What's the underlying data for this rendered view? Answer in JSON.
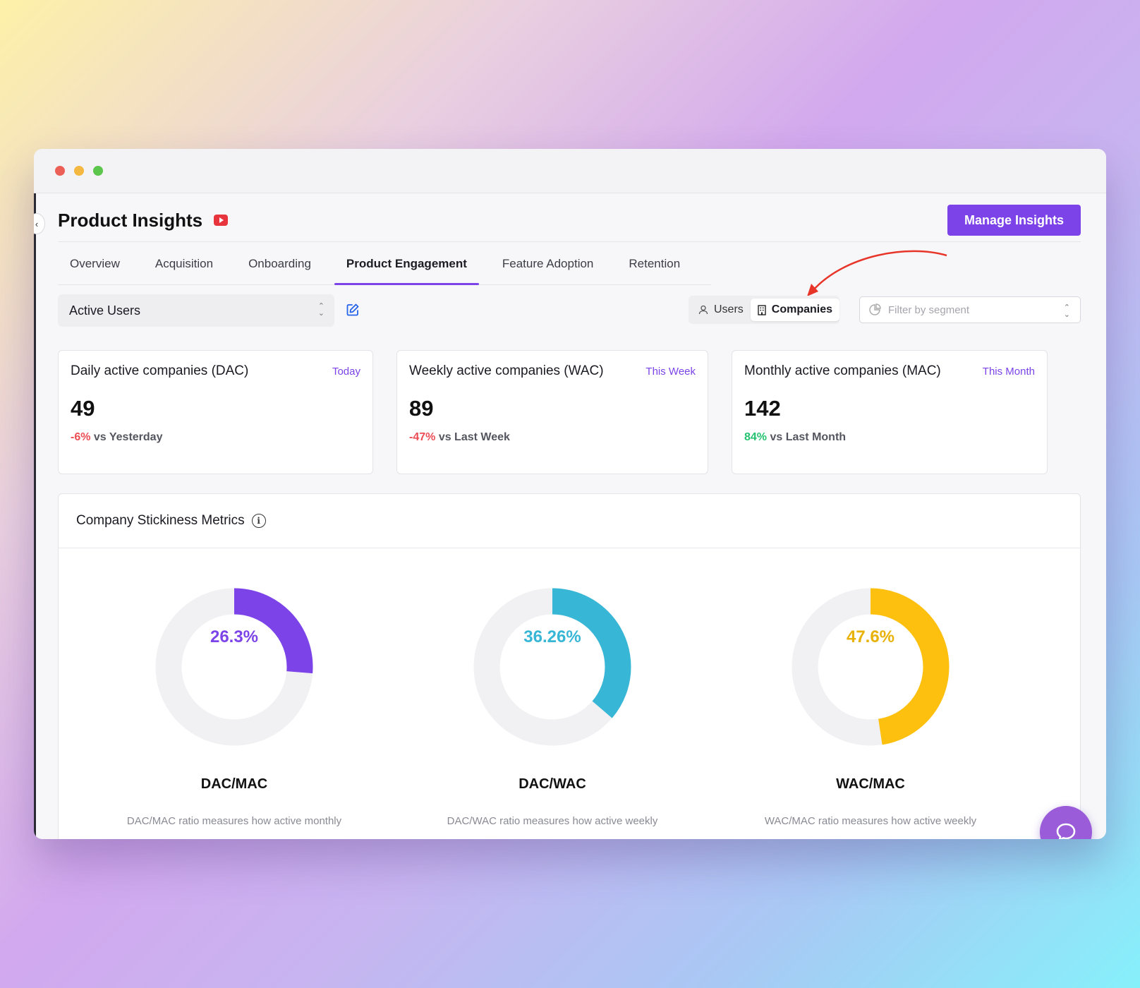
{
  "window": {
    "title": "Product Insights",
    "manage_button": "Manage Insights"
  },
  "tabs": [
    {
      "label": "Overview"
    },
    {
      "label": "Acquisition"
    },
    {
      "label": "Onboarding"
    },
    {
      "label": "Product Engagement"
    },
    {
      "label": "Feature Adoption"
    },
    {
      "label": "Retention"
    }
  ],
  "active_tab": "Product Engagement",
  "toolbar": {
    "metric_select_value": "Active Users",
    "toggle_users": "Users",
    "toggle_companies": "Companies",
    "toggle_selected": "Companies",
    "segment_placeholder": "Filter by segment"
  },
  "cards": [
    {
      "title": "Daily active companies (DAC)",
      "period": "Today",
      "value": "49",
      "delta": "-6%",
      "delta_suffix": "vs Yesterday",
      "trend": "negative"
    },
    {
      "title": "Weekly active companies (WAC)",
      "period": "This Week",
      "value": "89",
      "delta": "-47%",
      "delta_suffix": "vs Last Week",
      "trend": "negative"
    },
    {
      "title": "Monthly active companies (MAC)",
      "period": "This Month",
      "value": "142",
      "delta": "84%",
      "delta_suffix": "vs Last Month",
      "trend": "positive"
    }
  ],
  "stickiness": {
    "title": "Company Stickiness Metrics"
  },
  "chart_data": {
    "type": "pie",
    "title": "Company Stickiness Metrics",
    "series": [
      {
        "name": "DAC/MAC",
        "value": 26.3,
        "label": "26.3%",
        "color": "#7c44e8",
        "description": "DAC/MAC ratio measures how active monthly"
      },
      {
        "name": "DAC/WAC",
        "value": 36.26,
        "label": "36.26%",
        "color": "#38b6d6",
        "description": "DAC/WAC ratio measures how active weekly"
      },
      {
        "name": "WAC/MAC",
        "value": 47.6,
        "label": "47.6%",
        "color": "#fdc00f",
        "description": "WAC/MAC ratio measures how active weekly"
      }
    ],
    "track_color": "#f1f1f4"
  },
  "colors": {
    "accent": "#7c44e8",
    "negative": "#ec4d55",
    "positive": "#24c270",
    "annotation_arrow": "#e8352a"
  }
}
